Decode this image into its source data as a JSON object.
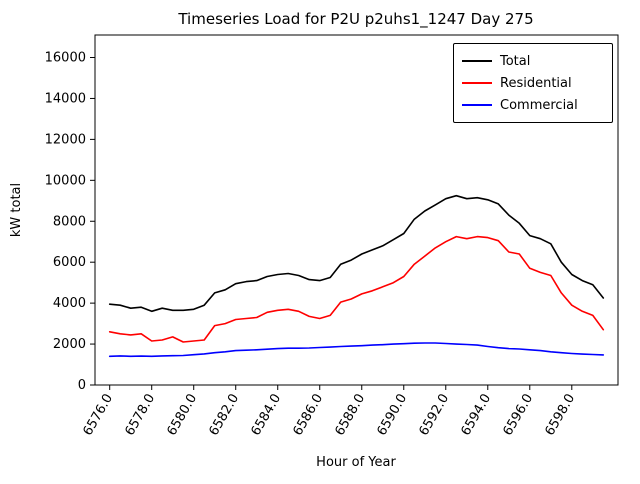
{
  "title": "Timeseries Load for P2U p2uhs1_1247  Day 275",
  "chart_data": {
    "type": "line",
    "title": "Timeseries Load for P2U p2uhs1_1247  Day 275",
    "xlabel": "Hour of Year",
    "ylabel": "kW total",
    "xlim": [
      6575.3,
      6600.2
    ],
    "ylim": [
      0,
      17100
    ],
    "grid": false,
    "legend_position": "upper right",
    "x_ticks": [
      6576,
      6578,
      6580,
      6582,
      6584,
      6586,
      6588,
      6590,
      6592,
      6594,
      6596,
      6598
    ],
    "x_tick_labels": [
      "6576.0",
      "6578.0",
      "6580.0",
      "6582.0",
      "6584.0",
      "6586.0",
      "6588.0",
      "6590.0",
      "6592.0",
      "6594.0",
      "6596.0",
      "6598.0"
    ],
    "y_ticks": [
      0,
      2000,
      4000,
      6000,
      8000,
      10000,
      12000,
      14000,
      16000
    ],
    "y_tick_labels": [
      "0",
      "2000",
      "4000",
      "6000",
      "8000",
      "10000",
      "12000",
      "14000",
      "16000"
    ],
    "x": [
      6576.0,
      6576.5,
      6577.0,
      6577.5,
      6578.0,
      6578.5,
      6579.0,
      6579.5,
      6580.0,
      6580.5,
      6581.0,
      6581.5,
      6582.0,
      6582.5,
      6583.0,
      6583.5,
      6584.0,
      6584.5,
      6585.0,
      6585.5,
      6586.0,
      6586.5,
      6587.0,
      6587.5,
      6588.0,
      6588.5,
      6589.0,
      6589.5,
      6590.0,
      6590.5,
      6591.0,
      6591.5,
      6592.0,
      6592.5,
      6593.0,
      6593.5,
      6594.0,
      6594.5,
      6595.0,
      6595.5,
      6596.0,
      6596.5,
      6597.0,
      6597.5,
      6598.0,
      6598.5,
      6599.0,
      6599.5
    ],
    "series": [
      {
        "name": "Total",
        "color": "#000000",
        "values": [
          3950,
          3900,
          3750,
          3800,
          3600,
          3750,
          3650,
          3650,
          3700,
          3900,
          4500,
          4650,
          4950,
          5050,
          5100,
          5300,
          5400,
          5450,
          5350,
          5150,
          5100,
          5250,
          5900,
          6100,
          6400,
          6600,
          6800,
          7100,
          7400,
          8100,
          8500,
          8800,
          9100,
          9250,
          9100,
          9150,
          9050,
          8850,
          8300,
          7900,
          7300,
          7150,
          6900,
          6000,
          5400,
          5100,
          4900,
          4250
        ]
      },
      {
        "name": "Residential",
        "color": "#ff0000",
        "values": [
          2600,
          2500,
          2450,
          2500,
          2150,
          2200,
          2350,
          2100,
          2150,
          2200,
          2900,
          3000,
          3200,
          3250,
          3300,
          3550,
          3650,
          3700,
          3600,
          3350,
          3250,
          3400,
          4050,
          4200,
          4450,
          4600,
          4800,
          5000,
          5300,
          5900,
          6300,
          6700,
          7000,
          7250,
          7150,
          7250,
          7200,
          7050,
          6500,
          6400,
          5700,
          5500,
          5350,
          4500,
          3900,
          3600,
          3400,
          2700
        ]
      },
      {
        "name": "Commercial",
        "color": "#0000ff",
        "values": [
          1400,
          1420,
          1400,
          1410,
          1400,
          1420,
          1430,
          1440,
          1480,
          1520,
          1580,
          1620,
          1680,
          1700,
          1720,
          1750,
          1780,
          1800,
          1800,
          1810,
          1830,
          1850,
          1880,
          1900,
          1920,
          1950,
          1970,
          2000,
          2020,
          2040,
          2050,
          2050,
          2030,
          2000,
          1980,
          1950,
          1880,
          1820,
          1780,
          1760,
          1720,
          1680,
          1620,
          1580,
          1540,
          1510,
          1490,
          1470
        ]
      }
    ]
  }
}
